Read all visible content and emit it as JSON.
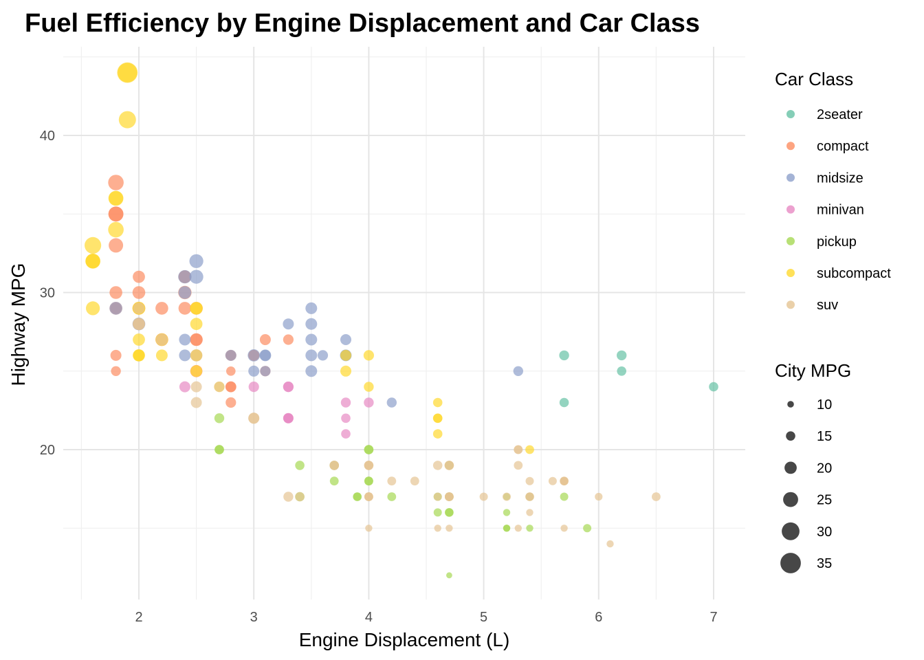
{
  "chart_data": {
    "type": "scatter",
    "title": "Fuel Efficiency by Engine Displacement and Car Class",
    "xlabel": "Engine Displacement (L)",
    "ylabel": "Highway MPG",
    "xlim": [
      1.4,
      7.3
    ],
    "ylim": [
      11,
      46
    ],
    "x_ticks": [
      "2",
      "3",
      "4",
      "5",
      "6",
      "7"
    ],
    "y_ticks": [
      "20",
      "30",
      "40"
    ],
    "grid": true,
    "legend_position": "right",
    "color_legend_title": "Car Class",
    "size_legend_title": "City MPG",
    "size_legend_values": [
      10,
      15,
      20,
      25,
      30,
      35
    ],
    "colors": {
      "2seater": "#66c2a5",
      "compact": "#fc8d62",
      "midsize": "#8da0cb",
      "minivan": "#e78ac3",
      "pickup": "#a6d854",
      "subcompact": "#ffd92f",
      "suv": "#e5c494"
    },
    "series": [
      {
        "name": "2seater",
        "points": [
          [
            5.7,
            26,
            16
          ],
          [
            5.7,
            23,
            15
          ],
          [
            6.2,
            26,
            16
          ],
          [
            6.2,
            25,
            15
          ],
          [
            7.0,
            24,
            15
          ]
        ]
      },
      {
        "name": "compact",
        "points": [
          [
            1.8,
            29,
            18
          ],
          [
            1.8,
            29,
            21
          ],
          [
            2.0,
            31,
            20
          ],
          [
            2.0,
            30,
            21
          ],
          [
            2.8,
            26,
            16
          ],
          [
            2.8,
            26,
            18
          ],
          [
            3.1,
            27,
            18
          ],
          [
            1.8,
            26,
            18
          ],
          [
            1.8,
            25,
            16
          ],
          [
            2.0,
            28,
            20
          ],
          [
            2.0,
            29,
            19
          ],
          [
            2.8,
            25,
            15
          ],
          [
            2.8,
            24,
            17
          ],
          [
            3.1,
            25,
            17
          ],
          [
            2.2,
            29,
            21
          ],
          [
            2.2,
            27,
            21
          ],
          [
            2.4,
            31,
            21
          ],
          [
            2.4,
            30,
            22
          ],
          [
            3.0,
            26,
            18
          ],
          [
            3.0,
            26,
            18
          ],
          [
            3.3,
            27,
            17
          ],
          [
            1.8,
            37,
            26
          ],
          [
            1.8,
            35,
            25
          ],
          [
            1.8,
            33,
            24
          ],
          [
            1.8,
            35,
            25
          ],
          [
            2.0,
            29,
            21
          ],
          [
            2.0,
            29,
            19
          ],
          [
            2.5,
            29,
            21
          ],
          [
            2.5,
            27,
            21
          ],
          [
            2.8,
            24,
            18
          ],
          [
            2.8,
            23,
            17
          ],
          [
            1.8,
            30,
            21
          ],
          [
            2.4,
            31,
            21
          ],
          [
            2.4,
            29,
            21
          ],
          [
            2.5,
            25,
            20
          ],
          [
            2.5,
            27,
            20
          ]
        ]
      },
      {
        "name": "midsize",
        "points": [
          [
            2.8,
            26,
            18
          ],
          [
            3.1,
            26,
            18
          ],
          [
            4.2,
            23,
            16
          ],
          [
            2.4,
            27,
            19
          ],
          [
            2.4,
            30,
            21
          ],
          [
            3.1,
            26,
            19
          ],
          [
            3.5,
            29,
            19
          ],
          [
            3.6,
            26,
            17
          ],
          [
            2.4,
            31,
            22
          ],
          [
            3.0,
            26,
            20
          ],
          [
            3.3,
            28,
            18
          ],
          [
            3.5,
            26,
            19
          ],
          [
            3.8,
            26,
            18
          ],
          [
            3.8,
            26,
            19
          ],
          [
            3.8,
            27,
            18
          ],
          [
            5.3,
            25,
            16
          ],
          [
            2.5,
            32,
            23
          ],
          [
            2.5,
            31,
            23
          ],
          [
            3.5,
            28,
            19
          ],
          [
            3.5,
            27,
            19
          ],
          [
            1.8,
            29,
            21
          ],
          [
            2.0,
            28,
            21
          ],
          [
            2.4,
            26,
            19
          ],
          [
            3.0,
            25,
            18
          ],
          [
            3.1,
            25,
            17
          ],
          [
            3.5,
            25,
            19
          ]
        ]
      },
      {
        "name": "minivan",
        "points": [
          [
            2.4,
            24,
            18
          ],
          [
            3.0,
            24,
            17
          ],
          [
            3.3,
            22,
            16
          ],
          [
            3.3,
            22,
            16
          ],
          [
            3.3,
            24,
            17
          ],
          [
            3.3,
            24,
            17
          ],
          [
            3.3,
            22,
            17
          ],
          [
            3.8,
            22,
            15
          ],
          [
            3.8,
            21,
            15
          ],
          [
            3.8,
            23,
            16
          ],
          [
            4.0,
            23,
            16
          ]
        ]
      },
      {
        "name": "pickup",
        "points": [
          [
            3.7,
            19,
            15
          ],
          [
            3.7,
            18,
            14
          ],
          [
            3.9,
            17,
            13
          ],
          [
            3.9,
            17,
            14
          ],
          [
            4.7,
            17,
            14
          ],
          [
            4.7,
            16,
            14
          ],
          [
            4.7,
            19,
            14
          ],
          [
            5.2,
            17,
            11
          ],
          [
            5.2,
            15,
            11
          ],
          [
            5.7,
            17,
            13
          ],
          [
            5.9,
            15,
            13
          ],
          [
            4.7,
            12,
            9
          ],
          [
            4.7,
            17,
            13
          ],
          [
            4.7,
            16,
            13
          ],
          [
            4.7,
            17,
            13
          ],
          [
            4.7,
            17,
            13
          ],
          [
            5.2,
            16,
            11
          ],
          [
            5.2,
            15,
            11
          ],
          [
            5.4,
            15,
            11
          ],
          [
            4.6,
            17,
            13
          ],
          [
            4.6,
            16,
            13
          ],
          [
            5.4,
            17,
            13
          ],
          [
            2.7,
            20,
            15
          ],
          [
            2.7,
            22,
            16
          ],
          [
            2.7,
            20,
            15
          ],
          [
            3.4,
            17,
            15
          ],
          [
            3.4,
            19,
            15
          ],
          [
            4.0,
            20,
            15
          ],
          [
            4.0,
            18,
            14
          ],
          [
            4.2,
            17,
            14
          ],
          [
            4.0,
            20,
            15
          ],
          [
            4.0,
            18,
            14
          ]
        ]
      },
      {
        "name": "subcompact",
        "points": [
          [
            3.8,
            26,
            18
          ],
          [
            3.8,
            25,
            18
          ],
          [
            4.0,
            26,
            17
          ],
          [
            4.0,
            24,
            16
          ],
          [
            4.6,
            21,
            15
          ],
          [
            4.6,
            22,
            15
          ],
          [
            4.6,
            23,
            15
          ],
          [
            4.6,
            22,
            15
          ],
          [
            5.4,
            20,
            14
          ],
          [
            1.6,
            33,
            28
          ],
          [
            1.6,
            32,
            24
          ],
          [
            1.6,
            32,
            25
          ],
          [
            1.6,
            29,
            23
          ],
          [
            1.6,
            32,
            24
          ],
          [
            1.8,
            34,
            26
          ],
          [
            1.8,
            36,
            25
          ],
          [
            1.8,
            36,
            24
          ],
          [
            2.0,
            29,
            21
          ],
          [
            2.0,
            26,
            19
          ],
          [
            2.0,
            27,
            20
          ],
          [
            2.0,
            26,
            20
          ],
          [
            2.5,
            26,
            19
          ],
          [
            2.5,
            29,
            20
          ],
          [
            2.5,
            25,
            19
          ],
          [
            2.5,
            28,
            20
          ],
          [
            2.5,
            26,
            19
          ],
          [
            2.7,
            24,
            17
          ],
          [
            1.9,
            44,
            33
          ],
          [
            1.9,
            44,
            35
          ],
          [
            1.9,
            41,
            29
          ],
          [
            2.0,
            29,
            21
          ],
          [
            2.0,
            26,
            19
          ],
          [
            2.5,
            29,
            21
          ],
          [
            2.5,
            26,
            19
          ],
          [
            2.2,
            26,
            19
          ],
          [
            2.2,
            27,
            21
          ]
        ]
      },
      {
        "name": "suv",
        "points": [
          [
            5.3,
            20,
            14
          ],
          [
            5.3,
            15,
            11
          ],
          [
            5.3,
            20,
            14
          ],
          [
            5.7,
            15,
            11
          ],
          [
            6.0,
            17,
            12
          ],
          [
            4.7,
            17,
            14
          ],
          [
            4.7,
            15,
            11
          ],
          [
            5.2,
            17,
            13
          ],
          [
            5.7,
            18,
            13
          ],
          [
            6.1,
            14,
            11
          ],
          [
            5.3,
            19,
            14
          ],
          [
            4.0,
            19,
            14
          ],
          [
            4.0,
            17,
            14
          ],
          [
            4.0,
            15,
            11
          ],
          [
            4.0,
            17,
            14
          ],
          [
            4.6,
            19,
            15
          ],
          [
            5.4,
            17,
            13
          ],
          [
            5.4,
            18,
            13
          ],
          [
            4.0,
            19,
            15
          ],
          [
            4.0,
            17,
            14
          ],
          [
            4.6,
            17,
            13
          ],
          [
            5.0,
            17,
            13
          ],
          [
            5.7,
            18,
            13
          ],
          [
            4.7,
            19,
            15
          ],
          [
            4.7,
            19,
            15
          ],
          [
            5.7,
            18,
            13
          ],
          [
            6.5,
            17,
            14
          ],
          [
            2.5,
            23,
            18
          ],
          [
            2.5,
            24,
            18
          ],
          [
            2.7,
            24,
            17
          ],
          [
            3.4,
            17,
            15
          ],
          [
            4.0,
            19,
            15
          ],
          [
            4.7,
            17,
            14
          ],
          [
            5.7,
            18,
            14
          ],
          [
            4.2,
            18,
            14
          ],
          [
            4.4,
            18,
            14
          ],
          [
            4.7,
            17,
            14
          ],
          [
            4.6,
            15,
            11
          ],
          [
            5.4,
            16,
            11
          ],
          [
            5.6,
            18,
            13
          ],
          [
            5.4,
            17,
            14
          ],
          [
            3.0,
            22,
            18
          ],
          [
            3.0,
            22,
            18
          ],
          [
            3.3,
            17,
            16
          ],
          [
            3.7,
            19,
            15
          ],
          [
            3.7,
            19,
            15
          ],
          [
            2.0,
            29,
            19
          ],
          [
            2.0,
            28,
            20
          ],
          [
            2.0,
            28,
            20
          ],
          [
            2.2,
            27,
            20
          ],
          [
            2.5,
            26,
            20
          ]
        ]
      }
    ]
  }
}
